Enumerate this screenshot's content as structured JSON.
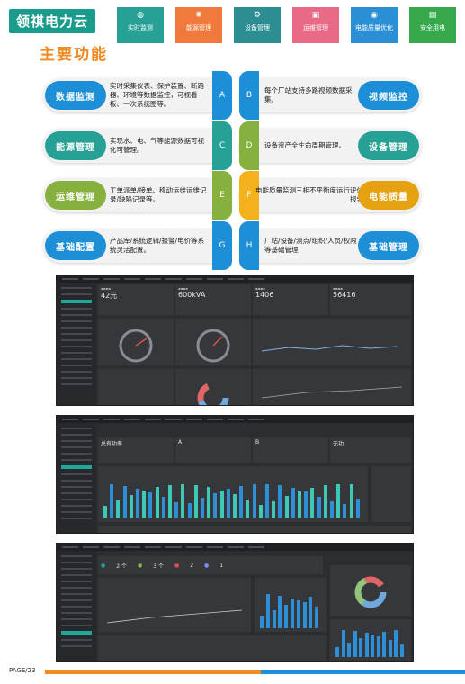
{
  "brand": "领祺电力云",
  "section_title": "主要功能",
  "nav": [
    {
      "label": "实时监测",
      "icon": "globe-icon",
      "glyph": "◍",
      "color": "#27a196"
    },
    {
      "label": "能源管理",
      "icon": "brain-icon",
      "glyph": "✺",
      "color": "#f07a3c"
    },
    {
      "label": "设备管理",
      "icon": "gear-icon",
      "glyph": "⚙",
      "color": "#2c8e92"
    },
    {
      "label": "运维管理",
      "icon": "briefcase-icon",
      "glyph": "▣",
      "color": "#e86a86"
    },
    {
      "label": "电能质量优化",
      "icon": "camera-icon",
      "glyph": "◉",
      "color": "#2a8fd4"
    },
    {
      "label": "安全用电",
      "icon": "chat-icon",
      "glyph": "▤",
      "color": "#36a94c"
    }
  ],
  "features": [
    {
      "left": {
        "title": "数据监测",
        "letter": "A",
        "text": "实时采集仪表、保护装置、断路器、环境等数据监控，可视看板、一次系统图等。"
      },
      "right": {
        "title": "视频监控",
        "letter": "B",
        "text": "每个厂站支持多路视频数据采集。"
      }
    },
    {
      "left": {
        "title": "能源管理",
        "letter": "C",
        "text": "实现水、电、气等能源数据可视化可管理。"
      },
      "right": {
        "title": "设备管理",
        "letter": "D",
        "text": "设备资产全生命周期管理。"
      }
    },
    {
      "left": {
        "title": "运维管理",
        "letter": "E",
        "text": "工单派单/接单、移动运维运维记录/缺陷记录等。"
      },
      "right": {
        "title": "电能质量",
        "letter": "F",
        "text": "电能质量监测三相不平衡度运行评估报告"
      }
    },
    {
      "left": {
        "title": "基础配置",
        "letter": "G",
        "text": "产品库/系统逻辑/报警/电价等系统灵活配置。"
      },
      "right": {
        "title": "基础管理",
        "letter": "H",
        "text": "厂站/设备/测点/组织/人员/权限等基础管理"
      }
    }
  ],
  "screens": {
    "s1": {
      "kpis": [
        "42元",
        "600kVA",
        "1406",
        "56416"
      ]
    },
    "s2": {
      "kpis": [
        "总有功率",
        "A",
        "B",
        "无功"
      ]
    },
    "s3": {
      "kpis": [
        "2 个",
        "3 个",
        "2",
        "1"
      ]
    }
  },
  "footer": "PAGE/23"
}
